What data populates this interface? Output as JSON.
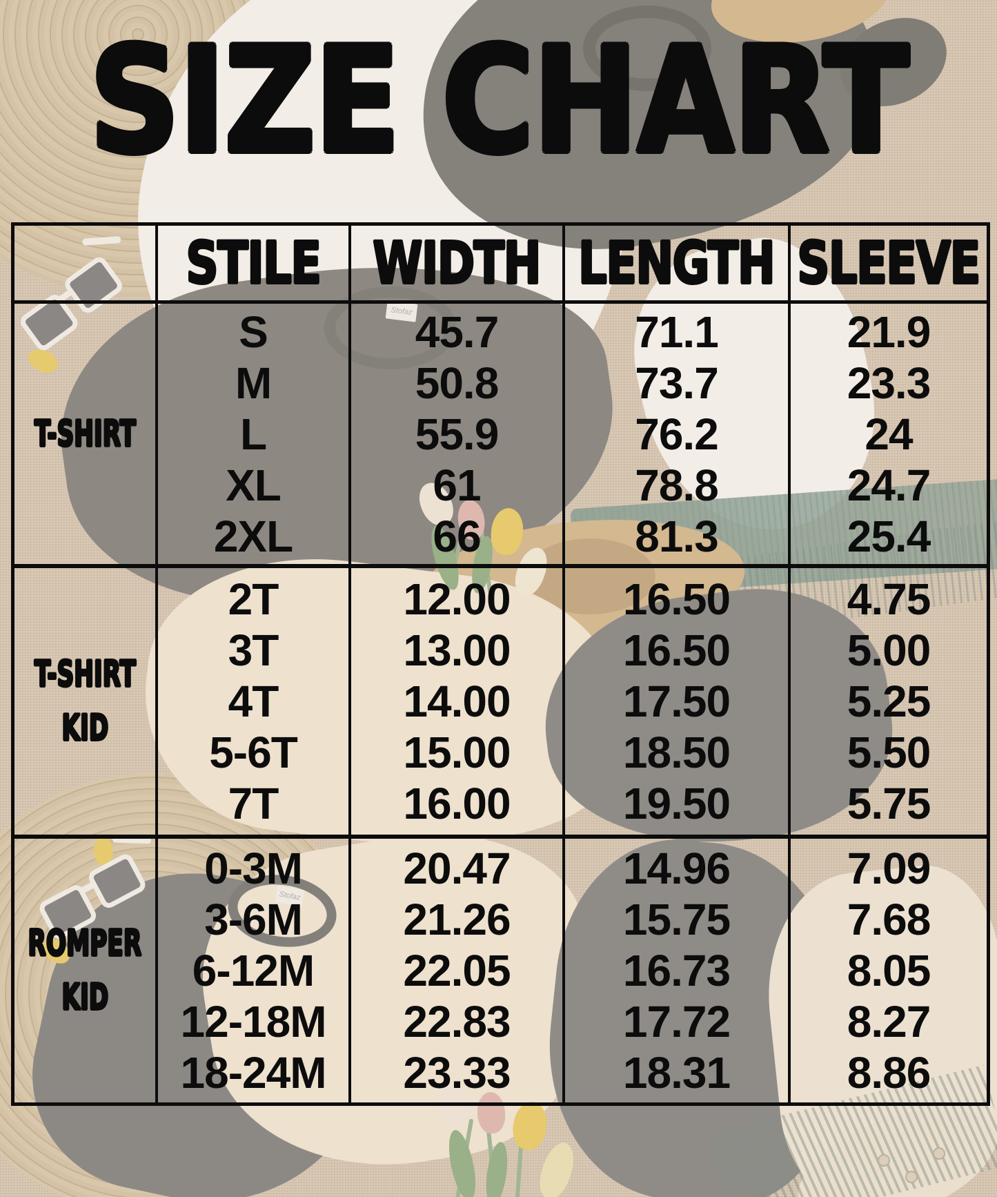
{
  "title": "SIZE CHART",
  "table": {
    "columns": [
      "STILE",
      "WIDTH",
      "LENGTH",
      "SLEEVE"
    ],
    "sections": [
      {
        "label_lines": [
          "T-SHIRT"
        ],
        "rows": [
          {
            "size": "S",
            "width": "45.7",
            "length": "71.1",
            "sleeve": "21.9"
          },
          {
            "size": "M",
            "width": "50.8",
            "length": "73.7",
            "sleeve": "23.3"
          },
          {
            "size": "L",
            "width": "55.9",
            "length": "76.2",
            "sleeve": "24"
          },
          {
            "size": "XL",
            "width": "61",
            "length": "78.8",
            "sleeve": "24.7"
          },
          {
            "size": "2XL",
            "width": "66",
            "length": "81.3",
            "sleeve": "25.4"
          }
        ]
      },
      {
        "label_lines": [
          "T-SHIRT",
          "KID"
        ],
        "rows": [
          {
            "size": "2T",
            "width": "12.00",
            "length": "16.50",
            "sleeve": "4.75"
          },
          {
            "size": "3T",
            "width": "13.00",
            "length": "16.50",
            "sleeve": "5.00"
          },
          {
            "size": "4T",
            "width": "14.00",
            "length": "17.50",
            "sleeve": "5.25"
          },
          {
            "size": "5-6T",
            "width": "15.00",
            "length": "18.50",
            "sleeve": "5.50"
          },
          {
            "size": "7T",
            "width": "16.00",
            "length": "19.50",
            "sleeve": "5.75"
          }
        ]
      },
      {
        "label_lines": [
          "ROMPER",
          "KID"
        ],
        "rows": [
          {
            "size": "0-3M",
            "width": "20.47",
            "length": "14.96",
            "sleeve": "7.09"
          },
          {
            "size": "3-6M",
            "width": "21.26",
            "length": "15.75",
            "sleeve": "7.68"
          },
          {
            "size": "6-12M",
            "width": "22.05",
            "length": "16.73",
            "sleeve": "8.05"
          },
          {
            "size": "12-18M",
            "width": "22.83",
            "length": "17.72",
            "sleeve": "8.27"
          },
          {
            "size": "18-24M",
            "width": "23.33",
            "length": "18.31",
            "sleeve": "8.86"
          }
        ]
      }
    ]
  },
  "background": {
    "shirt_tag": "Stofaz",
    "photo_items": [
      "woven placemats",
      "white t-shirt",
      "black t-shirt",
      "gray t-shirts",
      "cream kid t-shirts",
      "baby rompers",
      "sunglasses",
      "straw hat",
      "green fringed scarf",
      "tulips"
    ]
  },
  "colors": {
    "text": "#101010",
    "table_border": "#0c0c0c",
    "burlap": "#cdb89f",
    "placemat": "#b89f78",
    "white_shirt": "#f6f5f2",
    "gray_shirt": "#4a4846",
    "dark_shirt": "#3c3b39",
    "cream_shirt": "#efe0c8",
    "teal_scarf": "#4f7468",
    "straw_hat": "#c29a5d",
    "tulip_yellow": "#e2b822",
    "tulip_pink": "#d49a92",
    "leaf_green": "#5f8c50"
  }
}
